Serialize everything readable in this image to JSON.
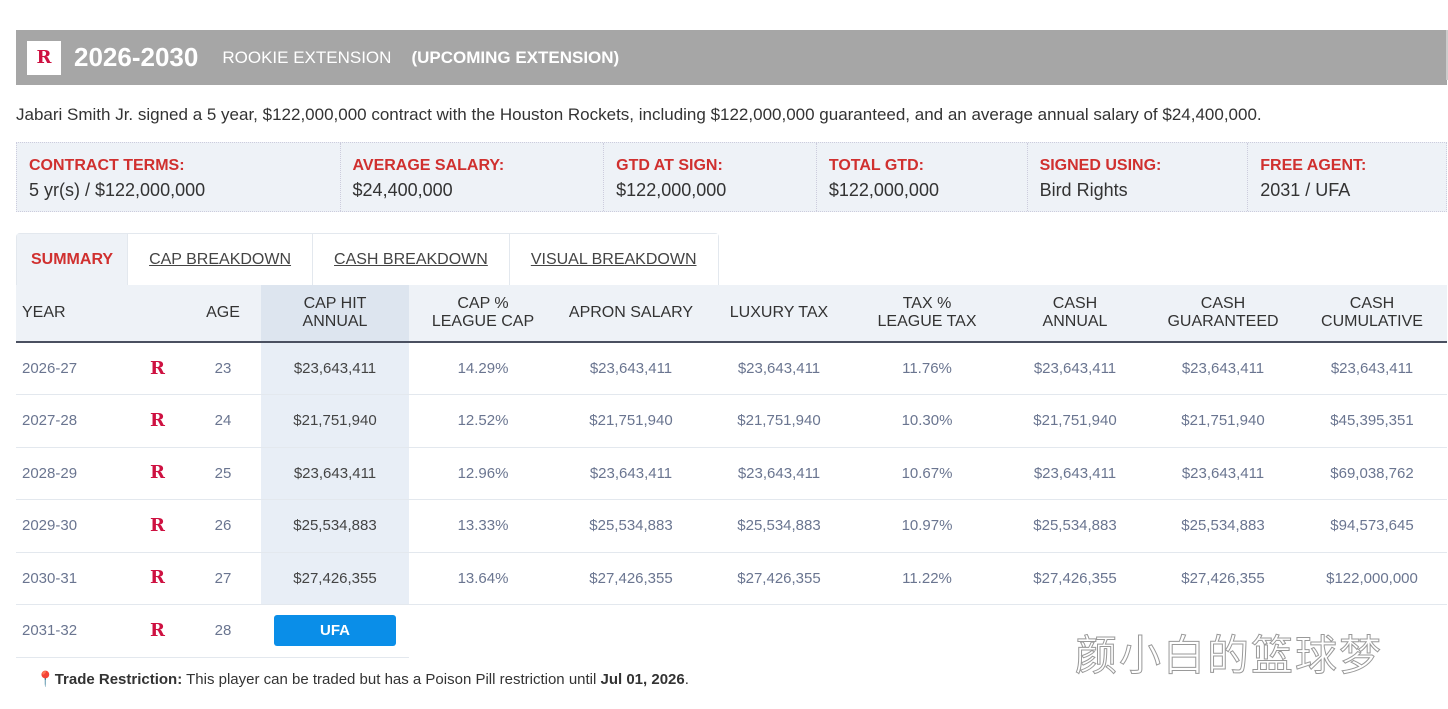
{
  "header": {
    "years": "2026-2030",
    "type": "ROOKIE EXTENSION",
    "status": "(UPCOMING EXTENSION)"
  },
  "description": "Jabari Smith Jr. signed a 5 year, $122,000,000 contract with the Houston Rockets, including $122,000,000 guaranteed, and an average annual salary of $24,400,000.",
  "terms": [
    {
      "label": "CONTRACT TERMS:",
      "value": "5 yr(s) / $122,000,000"
    },
    {
      "label": "AVERAGE SALARY:",
      "value": "$24,400,000"
    },
    {
      "label": "GTD AT SIGN:",
      "value": "$122,000,000"
    },
    {
      "label": "TOTAL GTD:",
      "value": "$122,000,000"
    },
    {
      "label": "SIGNED USING:",
      "value": "Bird Rights"
    },
    {
      "label": "FREE AGENT:",
      "value": "2031 / UFA"
    }
  ],
  "tabs": [
    "SUMMARY",
    "CAP BREAKDOWN",
    "CASH BREAKDOWN",
    "VISUAL BREAKDOWN"
  ],
  "columns": {
    "year": "YEAR",
    "age": "AGE",
    "cap_hit_1": "CAP HIT",
    "cap_hit_2": "ANNUAL",
    "cap_pct_1": "CAP %",
    "cap_pct_2": "LEAGUE CAP",
    "apron": "APRON SALARY",
    "lux": "LUXURY TAX",
    "tax_pct_1": "TAX %",
    "tax_pct_2": "LEAGUE TAX",
    "cash_1": "CASH",
    "cash_2": "ANNUAL",
    "guar_1": "CASH",
    "guar_2": "GUARANTEED",
    "cum_1": "CASH",
    "cum_2": "CUMULATIVE"
  },
  "rows": [
    [
      "2026-27",
      "23",
      "$23,643,411",
      "14.29%",
      "$23,643,411",
      "$23,643,411",
      "11.76%",
      "$23,643,411",
      "$23,643,411",
      "$23,643,411"
    ],
    [
      "2027-28",
      "24",
      "$21,751,940",
      "12.52%",
      "$21,751,940",
      "$21,751,940",
      "10.30%",
      "$21,751,940",
      "$21,751,940",
      "$45,395,351"
    ],
    [
      "2028-29",
      "25",
      "$23,643,411",
      "12.96%",
      "$23,643,411",
      "$23,643,411",
      "10.67%",
      "$23,643,411",
      "$23,643,411",
      "$69,038,762"
    ],
    [
      "2029-30",
      "26",
      "$25,534,883",
      "13.33%",
      "$25,534,883",
      "$25,534,883",
      "10.97%",
      "$25,534,883",
      "$25,534,883",
      "$94,573,645"
    ],
    [
      "2030-31",
      "27",
      "$27,426,355",
      "13.64%",
      "$27,426,355",
      "$27,426,355",
      "11.22%",
      "$27,426,355",
      "$27,426,355",
      "$122,000,000"
    ]
  ],
  "ufa_row": {
    "year": "2031-32",
    "age": "28",
    "badge": "UFA"
  },
  "trade": {
    "label": "Trade Restriction:",
    "text": " This player can be traded but has a Poison Pill restriction until ",
    "date": "Jul 01, 2026",
    "end": "."
  },
  "watermark": "颜小白的篮球梦",
  "colors": {
    "accent": "#d0302f",
    "ufa": "#0a8ee8",
    "team": "#ce1141"
  }
}
